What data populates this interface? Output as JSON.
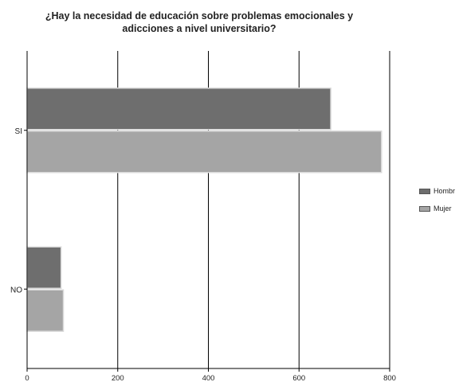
{
  "chart_data": {
    "type": "bar",
    "orientation": "horizontal",
    "title_lines": [
      "¿Hay la necesidad de educación sobre problemas emocionales y",
      "adicciones a nivel universitario?"
    ],
    "categories": [
      "SI",
      "NO"
    ],
    "series": [
      {
        "name": "Hombr",
        "values": [
          670,
          75
        ],
        "color": "#6e6e6e"
      },
      {
        "name": "Mujer",
        "values": [
          782,
          80
        ],
        "color": "#a5a5a5"
      }
    ],
    "xlim": [
      0,
      800
    ],
    "x_ticks": [
      0,
      200,
      400,
      600,
      800
    ],
    "grid": true,
    "legend": "right"
  }
}
